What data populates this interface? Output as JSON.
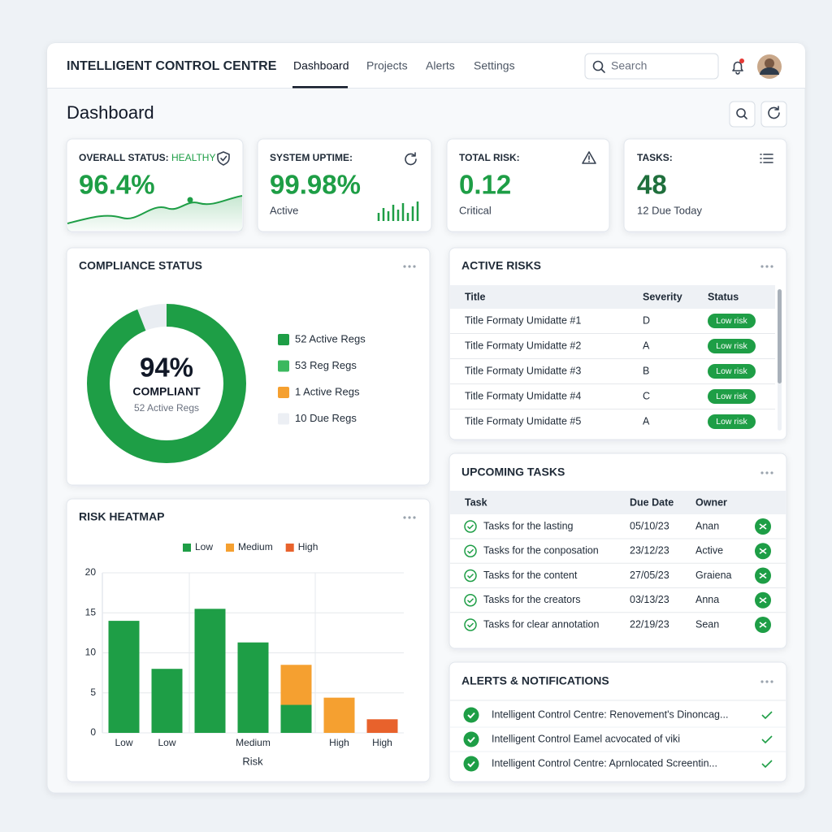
{
  "header": {
    "title": "INTELLIGENT CONTROL CENTRE",
    "nav": [
      "Dashboard",
      "Projects",
      "Alerts",
      "Settings"
    ],
    "search": "Search"
  },
  "page_title": "Dashboard",
  "kpis": [
    {
      "label": "OVERALL STATUS:",
      "status": "HEALTHY",
      "value": "96.4%"
    },
    {
      "label": "SYSTEM UPTIME:",
      "value": "99.98%",
      "sub": "Active"
    },
    {
      "label": "TOTAL RISK:",
      "value": "0.12",
      "sub": "Critical"
    },
    {
      "label": "TASKS:",
      "value": "48",
      "sub": "12 Due Today"
    }
  ],
  "compliance": {
    "title": "COMPLIANCE STATUS",
    "percent": 94,
    "center_value": "94%",
    "center_label": "COMPLIANT",
    "center_sub": "52 Active Regs",
    "colors": [
      "#1e9e46",
      "#e9edf2"
    ],
    "legend": [
      {
        "label": "52 Active Regs",
        "color": "#1e9e46"
      },
      {
        "label": "53 Reg Regs",
        "color": "#3bb85e"
      },
      {
        "label": "1 Active Regs",
        "color": "#f5a030"
      },
      {
        "label": "10 Due Regs",
        "color": "#eceff4"
      }
    ]
  },
  "heatmap": {
    "title": "RISK HEATMAP",
    "type": "bar",
    "stacked": true,
    "grid": true,
    "xlabel": "Risk",
    "categories": [
      "Low",
      "Low",
      null,
      "Medium",
      null,
      "High",
      "High"
    ],
    "series": [
      {
        "name": "Low",
        "color": "#1e9e46",
        "values": [
          14,
          8,
          15.5,
          11.3,
          3.5,
          null,
          null
        ]
      },
      {
        "name": "Medium",
        "color": "#f5a030",
        "values": [
          null,
          null,
          null,
          null,
          5,
          4.4,
          null
        ]
      },
      {
        "name": "High",
        "color": "#e8622c",
        "values": [
          null,
          null,
          null,
          null,
          null,
          null,
          1.7
        ]
      }
    ],
    "ylim": [
      0,
      20
    ],
    "yticks": [
      0,
      5,
      10,
      15,
      20
    ]
  },
  "active_risks": {
    "title": "ACTIVE RISKS",
    "columns": [
      "Title",
      "Severity",
      "Status"
    ],
    "rows": [
      [
        "Title Formaty Umidatte #1",
        "D",
        "Low risk"
      ],
      [
        "Title Formaty Umidatte #2",
        "A",
        "Low risk"
      ],
      [
        "Title Formaty Umidatte #3",
        "B",
        "Low risk"
      ],
      [
        "Title Formaty Umidatte #4",
        "C",
        "Low risk"
      ],
      [
        "Title Formaty Umidatte #5",
        "A",
        "Low risk"
      ]
    ]
  },
  "tasks": {
    "title": "UPCOMING TASKS",
    "columns": [
      "Task",
      "Due Date",
      "Owner"
    ],
    "rows": [
      [
        "Tasks for the lasting",
        "05/10/23",
        "Anan"
      ],
      [
        "Tasks for the conposation",
        "23/12/23",
        "Active"
      ],
      [
        "Tasks for the content",
        "27/05/23",
        "Graiena"
      ],
      [
        "Tasks for the creators",
        "03/13/23",
        "Anna"
      ],
      [
        "Tasks for clear annotation",
        "22/19/23",
        "Sean"
      ]
    ]
  },
  "alerts": {
    "title": "ALERTS & NOTIFICATIONS",
    "items": [
      "Intelligent Control Centre: Renovement's Dinoncag...",
      "Intelligent Control Eamel acvocated of viki",
      "Intelligent Control Centre: Aprnlocated Screentin..."
    ]
  }
}
